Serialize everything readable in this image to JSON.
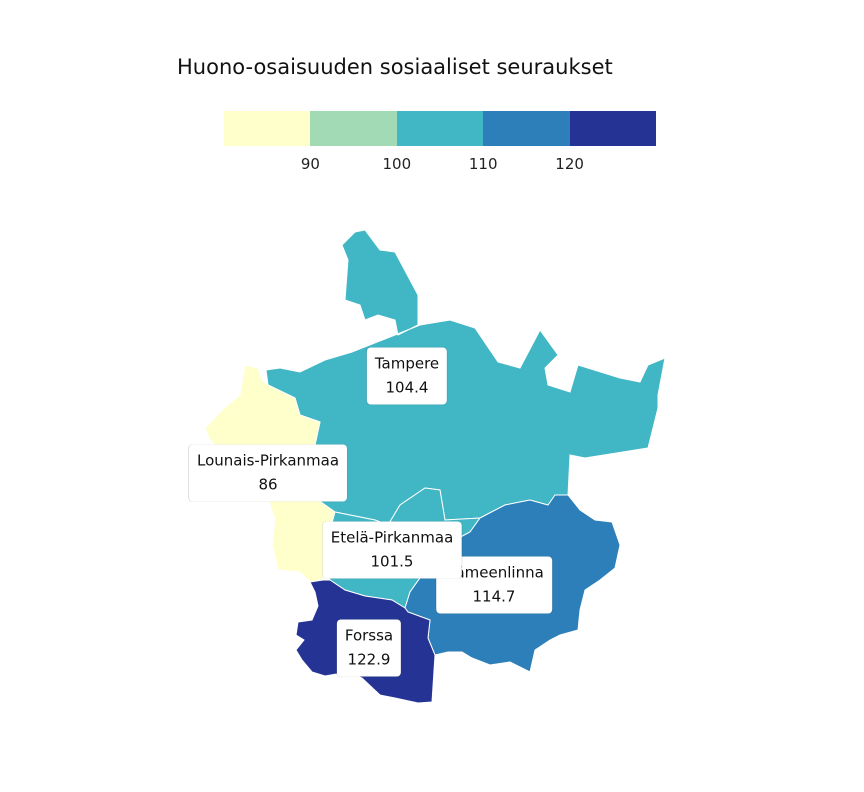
{
  "title": "Huono-osaisuuden sosiaaliset seuraukset",
  "legend": {
    "colors": [
      "#ffffcc",
      "#a1dab4",
      "#41b6c4",
      "#2c7fb8",
      "#253494"
    ],
    "ticks": [
      "90",
      "100",
      "110",
      "120"
    ]
  },
  "regions": [
    {
      "name": "Tampere",
      "value": "104.4",
      "color": "#41b6c4"
    },
    {
      "name": "Lounais-Pirkanmaa",
      "value": "86",
      "color": "#ffffcc"
    },
    {
      "name": "Etelä-Pirkanmaa",
      "value": "101.5",
      "color": "#41b6c4"
    },
    {
      "name": "Hämeenlinna",
      "value": "114.7",
      "color": "#2c7fb8"
    },
    {
      "name": "Forssa",
      "value": "122.9",
      "color": "#253494"
    }
  ]
}
